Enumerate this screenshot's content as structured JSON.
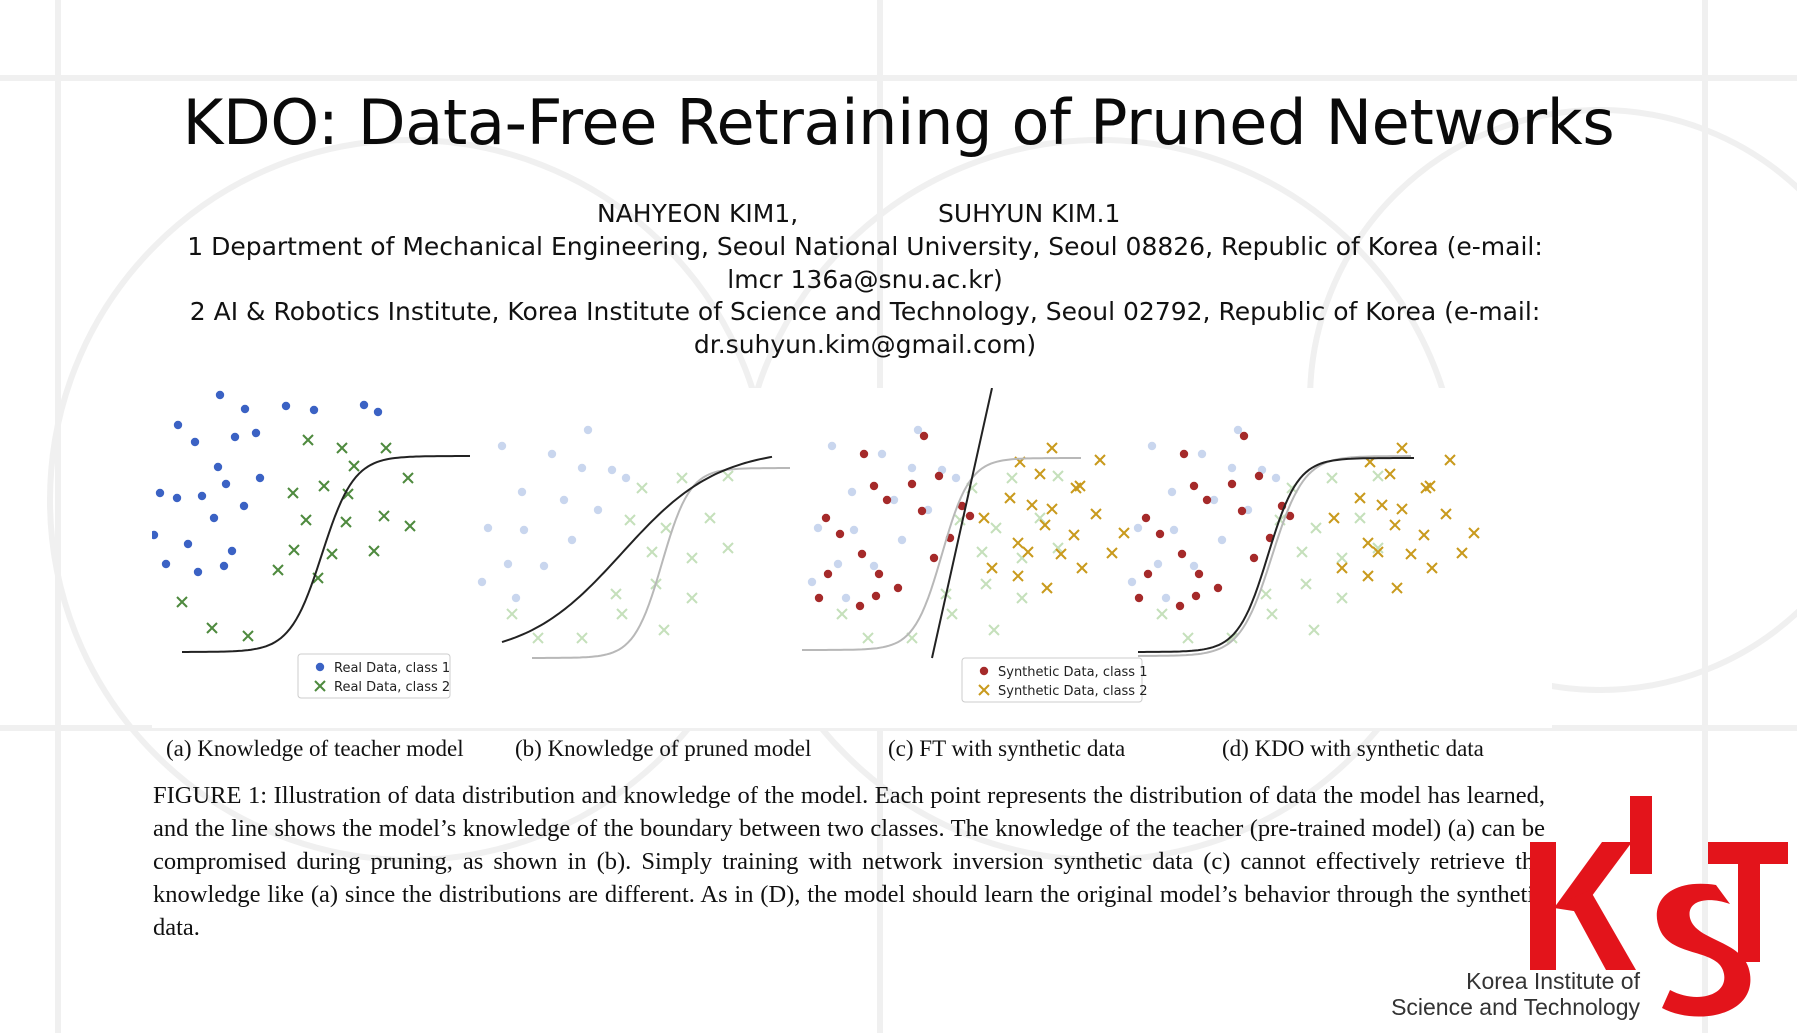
{
  "slide": {
    "title": "KDO: Data-Free Retraining of Pruned Networks",
    "author1": "NAHYEON KIM1,",
    "author2": "SUHYUN KIM.1",
    "affiliation1_line1": "1 Department of Mechanical Engineering, Seoul National University, Seoul 08826, Republic of Korea (e-mail:",
    "affiliation1_line2": "lmcr 136a@snu.ac.kr)",
    "affiliation2_line1": "2 AI & Robotics Institute, Korea Institute of Science and Technology, Seoul 02792, Republic of Korea (e-mail:",
    "affiliation2_line2": "dr.suhyun.kim@gmail.com)"
  },
  "figure": {
    "panels": [
      {
        "id": "a",
        "caption": "(a) Knowledge of teacher model",
        "legend": [
          "Real Data, class 1",
          "Real Data, class 2"
        ]
      },
      {
        "id": "b",
        "caption": "(b) Knowledge of pruned model",
        "legend": []
      },
      {
        "id": "c",
        "caption": "(c) FT with synthetic data",
        "legend": [
          "Synthetic Data, class 1",
          "Synthetic Data, class 2"
        ]
      },
      {
        "id": "d",
        "caption": "(d) KDO with synthetic data",
        "legend": []
      }
    ],
    "caption": "FIGURE 1: Illustration of data distribution and knowledge of the model. Each point represents the distribution of data the model has learned, and the line shows the model’s knowledge of the boundary between two classes. The knowledge of the teacher (pre-trained model) (a) can be compromised during pruning, as shown in (b). Simply training with network inversion synthetic data (c) cannot effectively retrieve the knowledge like (a) since the distributions are different. As in (D), the model should learn the original model’s behavior through the synthetic data.",
    "colors": {
      "real_class1": "#3b62c4",
      "real_class2": "#4e8a3e",
      "faded_class1": "#c9d6ee",
      "faded_class2": "#c5e0bb",
      "synthetic_class1": "#a52a2a",
      "synthetic_class2": "#c99a1d",
      "boundary": "#222222",
      "faded_boundary": "#b8b8b8"
    }
  },
  "logo": {
    "mark_color": "#e3141b",
    "line1": "Korea Institute of",
    "line2": "Science and Technology"
  }
}
